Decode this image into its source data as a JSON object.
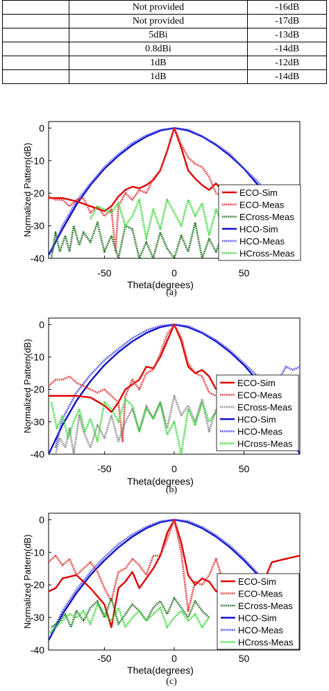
{
  "table": {
    "rows": [
      [
        "",
        "Not provided",
        "-16dB"
      ],
      [
        "",
        "Not provided",
        "-17dB"
      ],
      [
        "",
        "5dBi",
        "-13dB"
      ],
      [
        "",
        "0.8dBi",
        "-14dB"
      ],
      [
        "",
        "1dB",
        "-12dB"
      ],
      [
        "",
        "1dB",
        "-14dB"
      ]
    ]
  },
  "colors": {
    "eco_sim": "#e00000",
    "eco_meas": "#e23030",
    "ecross_a": "#1e6e1e",
    "ecross_b": "#888888",
    "ecross_c": "#1e6e1e",
    "hco_sim": "#1010c8",
    "hco_meas": "#4040e8",
    "hcross": "#36d636"
  },
  "chart_data": [
    {
      "type": "line",
      "caption": "(a)",
      "xlabel": "Theta(degrees)",
      "ylabel": "Normalized Pattern(dB)",
      "xlim": [
        -90,
        90
      ],
      "ylim": [
        -40,
        2
      ],
      "xticks": [
        -50,
        0,
        50
      ],
      "yticks": [
        0,
        -10,
        -20,
        -30,
        -40
      ],
      "legend_position": "lower-right",
      "series": [
        {
          "name": "HCO-Sim",
          "style": "solid",
          "color_key": "hco_sim",
          "x": [
            -90,
            -80,
            -70,
            -60,
            -50,
            -40,
            -30,
            -20,
            -10,
            0,
            10,
            20,
            30,
            40,
            50,
            60,
            70,
            80,
            90
          ],
          "y": [
            -39,
            -31,
            -23.5,
            -17.5,
            -12.5,
            -8.5,
            -5.2,
            -2.6,
            -0.8,
            0,
            -0.8,
            -2.6,
            -5.2,
            -8.5,
            -12.5,
            -17.5,
            -23.5,
            -31,
            -39
          ]
        },
        {
          "name": "HCO-Meas",
          "style": "dotted",
          "color_key": "hco_meas",
          "x": [
            -88,
            -80,
            -70,
            -60,
            -50,
            -40,
            -30,
            -20,
            -10,
            0,
            10,
            20,
            30,
            40,
            50,
            60,
            70,
            80,
            88
          ],
          "y": [
            -38,
            -30,
            -22.5,
            -17,
            -12,
            -8,
            -4.6,
            -2.2,
            -0.6,
            0,
            -0.5,
            -2.5,
            -5,
            -8,
            -12.5,
            -16.5,
            -22,
            -31,
            -36
          ]
        },
        {
          "name": "ECO-Sim",
          "style": "solid",
          "color_key": "eco_sim",
          "x": [
            -90,
            -80,
            -70,
            -60,
            -50,
            -45,
            -40,
            -35,
            -30,
            -25,
            -20,
            -15,
            -10,
            -5,
            0,
            5,
            10,
            15,
            20,
            25,
            30,
            35,
            40
          ],
          "y": [
            -21.5,
            -21.5,
            -22.5,
            -24,
            -25.5,
            -24,
            -21,
            -19,
            -18,
            -18.5,
            -17.5,
            -16,
            -13,
            -7,
            0,
            -6,
            -13,
            -15.5,
            -17.5,
            -19,
            -17,
            -19.5,
            -21
          ]
        },
        {
          "name": "ECO-Meas",
          "style": "dotted",
          "color_key": "eco_meas",
          "x": [
            -90,
            -85,
            -80,
            -75,
            -70,
            -65,
            -60,
            -55,
            -50,
            -45,
            -42,
            -40,
            -35,
            -30,
            -25,
            -20,
            -15,
            -10,
            -5,
            0,
            5,
            10,
            15,
            20,
            25,
            30,
            35,
            40,
            45,
            50
          ],
          "y": [
            -21,
            -22,
            -22,
            -24,
            -22,
            -21.5,
            -26,
            -24,
            -27,
            -25,
            -38,
            -24,
            -20,
            -22,
            -19,
            -20,
            -15.5,
            -13,
            -7,
            0,
            -5,
            -9,
            -11,
            -12,
            -15,
            -20,
            -21,
            -26,
            -22,
            -24
          ]
        },
        {
          "name": "ECross-Meas",
          "style": "dotted",
          "color_key": "ecross_a",
          "x": [
            -88,
            -85,
            -82,
            -78,
            -75,
            -72,
            -68,
            -65,
            -60,
            -55,
            -50,
            -45,
            -40,
            -35,
            -30,
            -25,
            -20,
            -15,
            -10,
            -5,
            0,
            5,
            10,
            15,
            20,
            25,
            30,
            35,
            40,
            45,
            50
          ],
          "y": [
            -40,
            -32,
            -38,
            -33,
            -38,
            -30,
            -36,
            -32,
            -35,
            -29,
            -38,
            -33,
            -40,
            -30,
            -31,
            -40,
            -35,
            -40,
            -32,
            -37,
            -40,
            -33,
            -38,
            -29,
            -40,
            -34,
            -38,
            -32,
            -40,
            -30,
            -36
          ]
        },
        {
          "name": "HCross-Meas",
          "style": "dotted",
          "color_key": "hcross",
          "x": [
            -60,
            -55,
            -50,
            -45,
            -40,
            -35,
            -30,
            -25,
            -20,
            -15,
            -10,
            -5,
            0,
            5,
            10,
            15,
            20,
            25,
            30,
            35,
            40,
            45,
            50
          ],
          "y": [
            -28,
            -24,
            -25,
            -26,
            -23,
            -30,
            -27,
            -22,
            -34,
            -25,
            -31,
            -22,
            -26,
            -30,
            -22,
            -27,
            -23,
            -33,
            -25,
            -30,
            -24,
            -26,
            -31
          ]
        }
      ]
    },
    {
      "type": "line",
      "caption": "(b)",
      "xlabel": "Theta(degrees)",
      "ylabel": "Normalized Pattern(dB)",
      "xlim": [
        -90,
        90
      ],
      "ylim": [
        -40,
        2
      ],
      "xticks": [
        -50,
        0,
        50
      ],
      "yticks": [
        0,
        -10,
        -20,
        -30,
        -40
      ],
      "legend_position": "lower-right",
      "series": [
        {
          "name": "HCO-Sim",
          "style": "solid",
          "color_key": "hco_sim",
          "x": [
            -90,
            -80,
            -70,
            -60,
            -50,
            -40,
            -30,
            -20,
            -10,
            0,
            10,
            20,
            30,
            40,
            50,
            60,
            70,
            80,
            90
          ],
          "y": [
            -40,
            -31,
            -23.5,
            -17.5,
            -12.5,
            -8.5,
            -5.2,
            -2.6,
            -0.8,
            0,
            -0.8,
            -2.6,
            -5.2,
            -8.5,
            -12.5,
            -17.5,
            -23.5,
            -31,
            -40
          ]
        },
        {
          "name": "HCO-Meas",
          "style": "dotted",
          "color_key": "hco_meas",
          "x": [
            -85,
            -80,
            -70,
            -60,
            -50,
            -40,
            -30,
            -20,
            -10,
            0,
            10,
            20,
            30,
            40,
            50,
            60,
            70,
            75,
            80,
            85,
            90
          ],
          "y": [
            -38,
            -29,
            -21,
            -15.5,
            -11,
            -7.5,
            -4.2,
            -1.8,
            -0.4,
            0,
            -0.5,
            -2.4,
            -4.8,
            -8,
            -12,
            -16,
            -21,
            -17,
            -13,
            -14,
            -13
          ]
        },
        {
          "name": "ECO-Sim",
          "style": "solid",
          "color_key": "eco_sim",
          "x": [
            -90,
            -80,
            -70,
            -60,
            -50,
            -45,
            -40,
            -35,
            -30,
            -25,
            -20,
            -15,
            -10,
            -5,
            0,
            5,
            10,
            15,
            20,
            25,
            30
          ],
          "y": [
            -22,
            -22,
            -22,
            -22.5,
            -25,
            -27,
            -24,
            -20,
            -18.5,
            -17,
            -13,
            -13.5,
            -10,
            -5,
            0,
            -5,
            -13,
            -15,
            -14,
            -16,
            -20
          ]
        },
        {
          "name": "ECO-Meas",
          "style": "dotted",
          "color_key": "eco_meas",
          "x": [
            -90,
            -85,
            -80,
            -75,
            -70,
            -65,
            -60,
            -55,
            -50,
            -45,
            -40,
            -37,
            -35,
            -30,
            -25,
            -20,
            -15,
            -10,
            -5,
            0,
            5,
            10,
            15,
            20,
            25,
            30
          ],
          "y": [
            -19,
            -17,
            -17,
            -16,
            -18,
            -19,
            -20,
            -21,
            -20,
            -22,
            -24,
            -36,
            -22,
            -17,
            -20,
            -15,
            -14,
            -9,
            -3,
            0,
            -4,
            -12,
            -15,
            -16,
            -21,
            -22
          ]
        },
        {
          "name": "ECross-Meas",
          "style": "dotted",
          "color_key": "ecross_b",
          "x": [
            -85,
            -82,
            -78,
            -75,
            -72,
            -68,
            -65,
            -60,
            -55,
            -50,
            -45,
            -40,
            -35,
            -30,
            -25,
            -20,
            -15,
            -10,
            -5,
            0,
            5,
            10,
            15,
            20,
            25,
            30
          ],
          "y": [
            -40,
            -35,
            -38,
            -32,
            -40,
            -28,
            -33,
            -38,
            -31,
            -35,
            -28,
            -36,
            -30,
            -26,
            -33,
            -25,
            -29,
            -24,
            -32,
            -22,
            -28,
            -25,
            -30,
            -23,
            -33,
            -26
          ]
        },
        {
          "name": "HCross-Meas",
          "style": "dotted",
          "color_key": "hcross",
          "x": [
            -88,
            -84,
            -80,
            -76,
            -72,
            -68,
            -64,
            -60,
            -55,
            -50,
            -45,
            -40,
            -35,
            -30,
            -25,
            -20,
            -15,
            -10,
            -5,
            0,
            5,
            10,
            15,
            20,
            25,
            30
          ],
          "y": [
            -24,
            -32,
            -28,
            -35,
            -30,
            -26,
            -33,
            -29,
            -36,
            -24,
            -26,
            -30,
            -23,
            -25,
            -33,
            -26,
            -29,
            -24,
            -34,
            -30,
            -40,
            -26,
            -31,
            -24,
            -30,
            -27
          ]
        }
      ]
    },
    {
      "type": "line",
      "caption": "(c)",
      "xlabel": "Theta(degrees)",
      "ylabel": "Normalized Pattern(dB)",
      "xlim": [
        -90,
        90
      ],
      "ylim": [
        -40,
        2
      ],
      "xticks": [
        -50,
        0,
        50
      ],
      "yticks": [
        0,
        -10,
        -20,
        -30,
        -40
      ],
      "legend_position": "lower-right",
      "series": [
        {
          "name": "HCO-Sim",
          "style": "solid",
          "color_key": "hco_sim",
          "x": [
            -90,
            -80,
            -70,
            -60,
            -50,
            -40,
            -30,
            -20,
            -10,
            0,
            10,
            20,
            30,
            40,
            50,
            60,
            70,
            80,
            90
          ],
          "y": [
            -37,
            -29,
            -22.5,
            -17,
            -12.5,
            -8.5,
            -5.2,
            -2.6,
            -0.8,
            0,
            -0.8,
            -2.6,
            -5.2,
            -8.5,
            -12.5,
            -17,
            -22.5,
            -29,
            -37
          ]
        },
        {
          "name": "HCO-Meas",
          "style": "dotted",
          "color_key": "hco_meas",
          "x": [
            -88,
            -80,
            -70,
            -60,
            -50,
            -40,
            -30,
            -20,
            -10,
            0,
            10,
            20,
            30,
            40,
            50,
            60,
            70,
            80,
            88
          ],
          "y": [
            -35,
            -28,
            -21.5,
            -16,
            -11.5,
            -7.5,
            -4.5,
            -2.2,
            -0.5,
            0,
            -0.4,
            -2.2,
            -4.8,
            -8,
            -12,
            -16.5,
            -22,
            -30,
            -36
          ]
        },
        {
          "name": "ECO-Sim",
          "style": "solid",
          "color_key": "eco_sim",
          "x": [
            -90,
            -85,
            -80,
            -70,
            -60,
            -50,
            -45,
            -40,
            -35,
            -30,
            -25,
            -20,
            -15,
            -10,
            -5,
            0,
            5,
            10,
            15,
            20,
            25,
            30,
            40,
            50,
            60,
            70,
            80,
            90
          ],
          "y": [
            -22,
            -21,
            -18,
            -17,
            -21,
            -26,
            -33,
            -21,
            -19,
            -16,
            -21,
            -18,
            -15,
            -11,
            -4,
            0,
            -7,
            -17,
            -20,
            -18,
            -19,
            -22,
            -19,
            -22,
            -23,
            -13,
            -12,
            -11
          ]
        },
        {
          "name": "ECO-Meas",
          "style": "dotted",
          "color_key": "eco_meas",
          "x": [
            -90,
            -85,
            -80,
            -75,
            -70,
            -65,
            -60,
            -55,
            -50,
            -45,
            -40,
            -35,
            -30,
            -25,
            -20,
            -15,
            -10,
            -5,
            0,
            5,
            10,
            15,
            20,
            25,
            30,
            35,
            40,
            50
          ],
          "y": [
            -13,
            -11,
            -14,
            -12,
            -17,
            -15,
            -13,
            -16,
            -21,
            -25,
            -16,
            -15,
            -12,
            -14,
            -17,
            -11,
            -11,
            -6,
            0,
            -10,
            -28,
            -19,
            -20,
            -17,
            -12,
            -19,
            -21,
            -20
          ]
        },
        {
          "name": "ECross-Meas",
          "style": "dotted",
          "color_key": "ecross_c",
          "x": [
            -88,
            -82,
            -78,
            -74,
            -70,
            -65,
            -60,
            -55,
            -50,
            -45,
            -40,
            -35,
            -30,
            -25,
            -20,
            -15,
            -10,
            -5,
            0,
            5,
            10,
            15,
            20,
            25
          ],
          "y": [
            -33,
            -31,
            -29,
            -33,
            -28,
            -31,
            -27,
            -25,
            -30,
            -24,
            -32,
            -29,
            -26,
            -28,
            -31,
            -27,
            -25,
            -29,
            -24,
            -27,
            -30,
            -25,
            -28,
            -30
          ]
        },
        {
          "name": "HCross-Meas",
          "style": "dotted",
          "color_key": "hcross",
          "x": [
            -90,
            -85,
            -80,
            -75,
            -70,
            -65,
            -60,
            -55,
            -50,
            -45,
            -40,
            -35,
            -30,
            -25,
            -20,
            -15,
            -10,
            -5,
            0,
            5,
            10,
            15,
            20,
            25
          ],
          "y": [
            -35,
            -33,
            -31,
            -29,
            -30,
            -28,
            -32,
            -26,
            -29,
            -31,
            -27,
            -33,
            -30,
            -28,
            -31,
            -29,
            -27,
            -33,
            -30,
            -28,
            -31,
            -29,
            -33,
            -30
          ]
        }
      ]
    }
  ]
}
